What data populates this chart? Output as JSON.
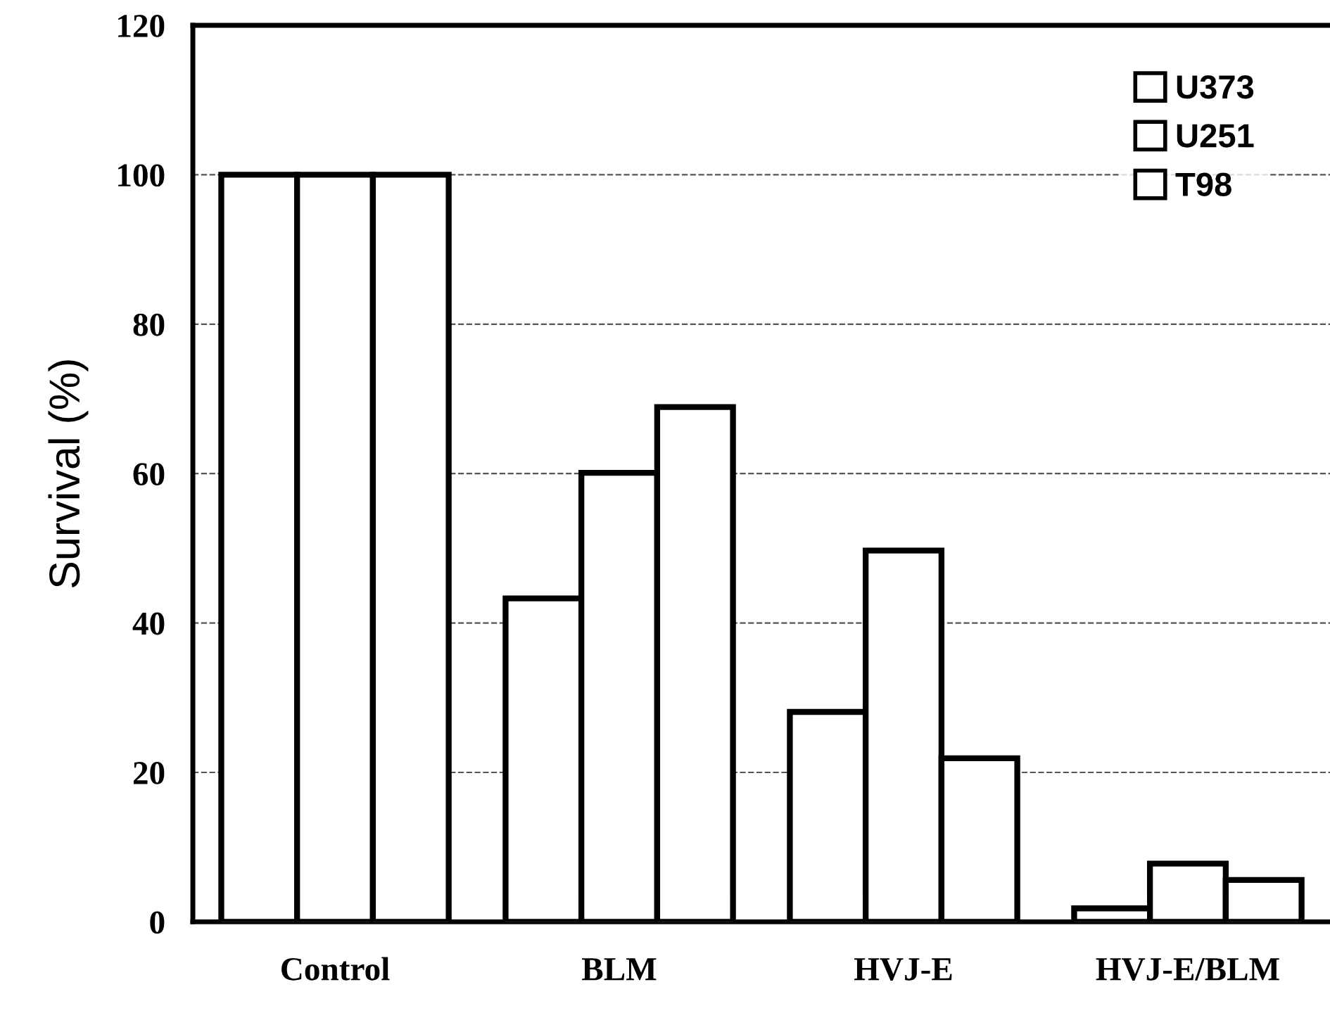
{
  "chart_data": {
    "type": "bar",
    "ylabel": "Survival (%)",
    "categories": [
      "Control",
      "BLM",
      "HVJ-E",
      "HVJ-E/BLM"
    ],
    "series": [
      {
        "name": "U373",
        "color": "#ffffff",
        "values": [
          100,
          43.3,
          28.1,
          1.8
        ]
      },
      {
        "name": "U251",
        "color": "#ffffff",
        "values": [
          100,
          60.1,
          49.7,
          7.8
        ]
      },
      {
        "name": "T98",
        "color": "#ffffff",
        "values": [
          100,
          68.9,
          21.9,
          5.6
        ]
      }
    ],
    "ylim": [
      0,
      120
    ],
    "yticks": [
      0,
      20,
      40,
      60,
      80,
      100,
      120
    ],
    "grid": "y",
    "line_style": "dashed",
    "legend": "top right"
  }
}
